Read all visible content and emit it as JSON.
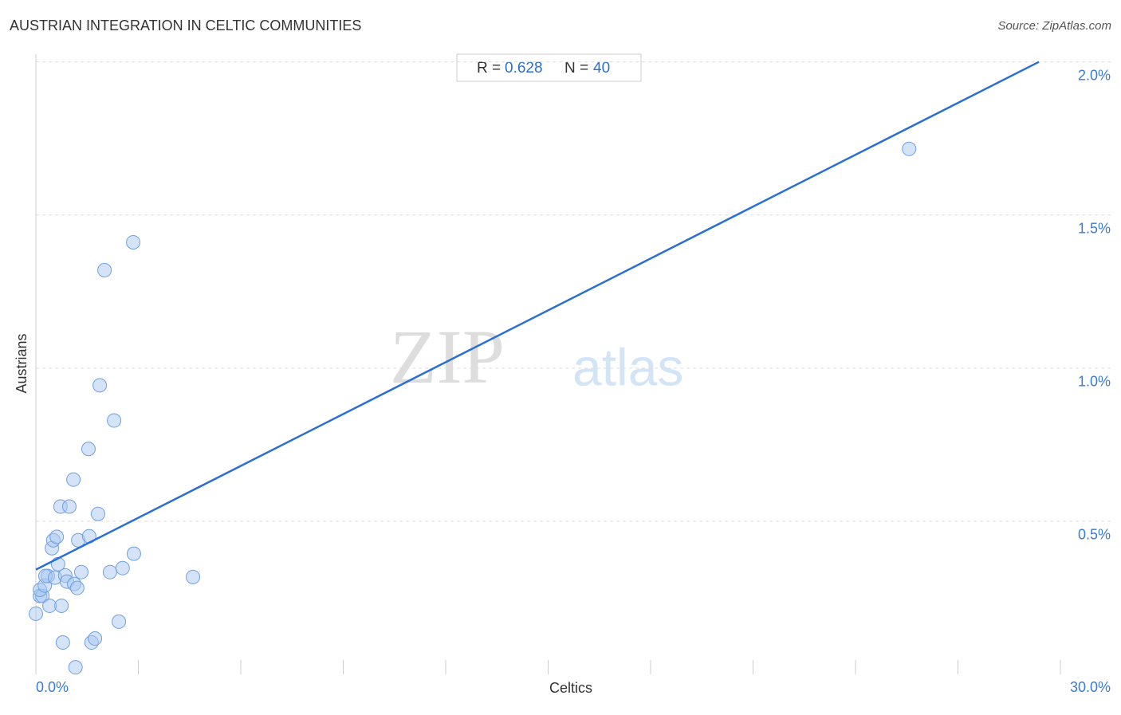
{
  "chart_data": {
    "type": "scatter",
    "title": "AUSTRIAN INTEGRATION IN CELTIC COMMUNITIES",
    "source": "Source: ZipAtlas.com",
    "watermark": [
      "ZIP",
      "atlas"
    ],
    "xlabel": "Celtics",
    "ylabel": "Austrians",
    "stats": {
      "r_label": "R =",
      "r": 0.628,
      "n_label": "N =",
      "n": 40
    },
    "color": "#a9c8f2",
    "edge_color": "#6fa0e3",
    "line_color": "#2b6fd4",
    "xlim": [
      0,
      30
    ],
    "ylim": [
      0,
      2.02
    ],
    "xticks": [
      {
        "value": 0,
        "label": "0.0%"
      },
      {
        "value": 30,
        "label": "30.0%"
      }
    ],
    "x_tick_marks": [
      3,
      6,
      9,
      12,
      15,
      18,
      21,
      24,
      27,
      30
    ],
    "yticks": [
      {
        "value": 0.5,
        "label": "0.5%"
      },
      {
        "value": 1.0,
        "label": "1.0%"
      },
      {
        "value": 1.5,
        "label": "1.5%"
      },
      {
        "value": 2.0,
        "label": "2.0%"
      }
    ],
    "grid": true,
    "x": [
      0.0,
      0.12,
      0.19,
      0.12,
      0.26,
      0.35,
      0.4,
      0.28,
      0.47,
      0.51,
      0.56,
      0.61,
      0.65,
      0.72,
      0.75,
      0.79,
      0.86,
      0.91,
      0.98,
      1.1,
      1.12,
      1.16,
      1.21,
      1.24,
      1.33,
      1.54,
      1.56,
      1.63,
      1.73,
      1.82,
      1.87,
      2.01,
      2.17,
      2.29,
      2.43,
      2.54,
      2.85,
      2.87,
      4.6,
      25.57
    ],
    "values": [
      0.198,
      0.256,
      0.256,
      0.276,
      0.29,
      0.321,
      0.224,
      0.321,
      0.412,
      0.438,
      0.316,
      0.449,
      0.36,
      0.548,
      0.224,
      0.104,
      0.323,
      0.303,
      0.548,
      0.636,
      0.295,
      0.023,
      0.282,
      0.438,
      0.334,
      0.736,
      0.451,
      0.104,
      0.117,
      0.524,
      0.944,
      1.32,
      0.334,
      0.829,
      0.172,
      0.347,
      1.411,
      0.394,
      0.318,
      1.716
    ],
    "trendline": {
      "x": [
        0,
        29.37
      ],
      "y": [
        0.342,
        2.0
      ]
    }
  }
}
